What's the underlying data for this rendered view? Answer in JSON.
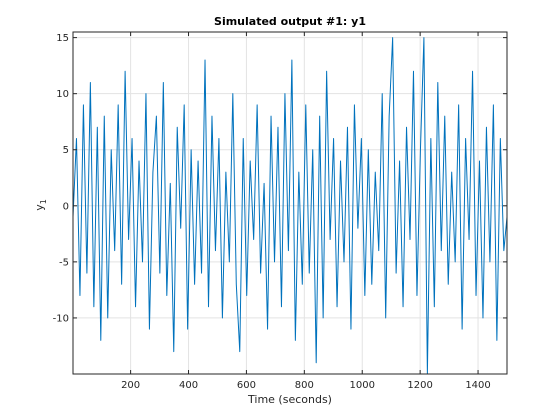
{
  "chart_data": {
    "type": "line",
    "title": "Simulated output #1: y1",
    "xlabel": "Time (seconds)",
    "ylabel_main": "y",
    "ylabel_sub": "1",
    "xlim": [
      1,
      1500
    ],
    "ylim": [
      -15,
      15.5
    ],
    "xticks": [
      200,
      400,
      600,
      800,
      1000,
      1200,
      1400
    ],
    "xtick_labels": [
      "200",
      "400",
      "600",
      "800",
      "1000",
      "1200",
      "1400"
    ],
    "yticks": [
      -10,
      -5,
      0,
      5,
      10,
      15
    ],
    "ytick_labels": [
      "-10",
      "-5",
      "0",
      "5",
      "10",
      "15"
    ],
    "grid": true,
    "series": [
      {
        "color": "#0072BD",
        "x": [
          1,
          13,
          25,
          37,
          49,
          61,
          73,
          85,
          97,
          109,
          121,
          133,
          145,
          157,
          169,
          181,
          193,
          205,
          217,
          229,
          241,
          253,
          265,
          277,
          289,
          301,
          313,
          325,
          337,
          349,
          361,
          373,
          385,
          397,
          409,
          421,
          433,
          445,
          457,
          469,
          481,
          493,
          505,
          517,
          529,
          541,
          553,
          565,
          577,
          589,
          601,
          613,
          625,
          637,
          649,
          661,
          673,
          685,
          697,
          709,
          721,
          733,
          745,
          757,
          769,
          781,
          793,
          805,
          817,
          829,
          841,
          853,
          865,
          877,
          889,
          901,
          913,
          925,
          937,
          949,
          961,
          973,
          985,
          997,
          1009,
          1021,
          1033,
          1045,
          1057,
          1069,
          1081,
          1093,
          1105,
          1117,
          1129,
          1141,
          1153,
          1165,
          1177,
          1189,
          1201,
          1213,
          1225,
          1237,
          1249,
          1261,
          1273,
          1285,
          1297,
          1309,
          1321,
          1333,
          1345,
          1357,
          1369,
          1381,
          1393,
          1405,
          1417,
          1429,
          1441,
          1453,
          1465,
          1477,
          1489,
          1500
        ],
        "y": [
          -1,
          6,
          -8,
          9,
          -6,
          11,
          -9,
          7,
          -12,
          8,
          -10,
          5,
          -4,
          9,
          -7,
          12,
          -3,
          6,
          -9,
          4,
          -5,
          10,
          -11,
          3,
          8,
          -6,
          11,
          -8,
          2,
          -13,
          7,
          -2,
          9,
          -11,
          5,
          -7,
          4,
          -6,
          13,
          -9,
          8,
          -4,
          6,
          -10,
          3,
          -5,
          10,
          -7,
          -13,
          6,
          -8,
          4,
          -3,
          9,
          -6,
          2,
          -11,
          8,
          -5,
          7,
          -9,
          10,
          -4,
          13,
          -12,
          3,
          -7,
          9,
          -6,
          5,
          -14,
          8,
          -10,
          12,
          -3,
          6,
          -9,
          4,
          -5,
          7,
          -11,
          9,
          -2,
          6,
          -8,
          5,
          -7,
          3,
          -4,
          10,
          -10,
          8,
          15,
          -6,
          4,
          -9,
          7,
          -3,
          12,
          -8,
          5,
          15,
          -15,
          6,
          -9,
          11,
          -4,
          8,
          -7,
          3,
          -5,
          9,
          -11,
          6,
          -3,
          12,
          -8,
          4,
          -10,
          7,
          -5,
          9,
          -12,
          6,
          -4,
          -1
        ]
      }
    ]
  }
}
